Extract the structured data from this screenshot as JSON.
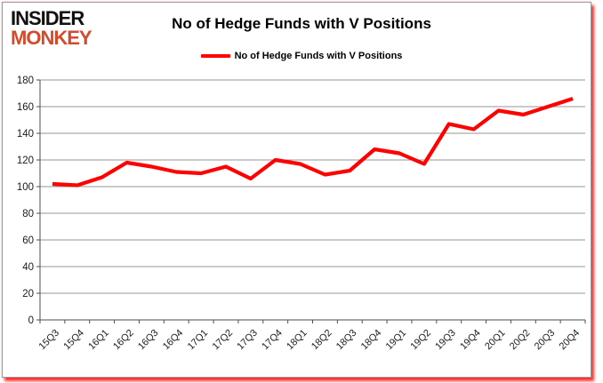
{
  "logo": {
    "line1": "INSIDER",
    "line2": "MONKEY",
    "monkey_color": "#d34b2a"
  },
  "header": {
    "title": "No of Hedge Funds with V Positions"
  },
  "legend": {
    "label": "No of Hedge Funds with V Positions",
    "marker_color": "#ff0000"
  },
  "chart_data": {
    "type": "line",
    "title": "No of Hedge Funds with V Positions",
    "categories": [
      "15Q3",
      "15Q4",
      "16Q1",
      "16Q2",
      "16Q3",
      "16Q4",
      "17Q1",
      "17Q2",
      "17Q3",
      "17Q4",
      "18Q1",
      "18Q2",
      "18Q3",
      "18Q4",
      "19Q1",
      "19Q2",
      "19Q3",
      "19Q4",
      "20Q1",
      "20Q2",
      "20Q3",
      "20Q4"
    ],
    "series": [
      {
        "name": "No of Hedge Funds with V Positions",
        "color": "#ff0000",
        "values": [
          102,
          101,
          107,
          118,
          115,
          111,
          110,
          115,
          106,
          120,
          117,
          109,
          112,
          128,
          125,
          117,
          147,
          143,
          157,
          154,
          160,
          166
        ]
      }
    ],
    "xlabel": "",
    "ylabel": "",
    "ylim": [
      0,
      180
    ],
    "ytick_step": 20,
    "grid": true,
    "legend_position": "top-center",
    "x_tick_rotation": -45
  },
  "colors": {
    "line": "#ff0000",
    "gridline": "#959595",
    "axis": "#4d4d4d",
    "tick_text": "#1a1a1a",
    "border": "#9a9a9a",
    "shadow": "#ff0000",
    "background": "#ffffff"
  }
}
